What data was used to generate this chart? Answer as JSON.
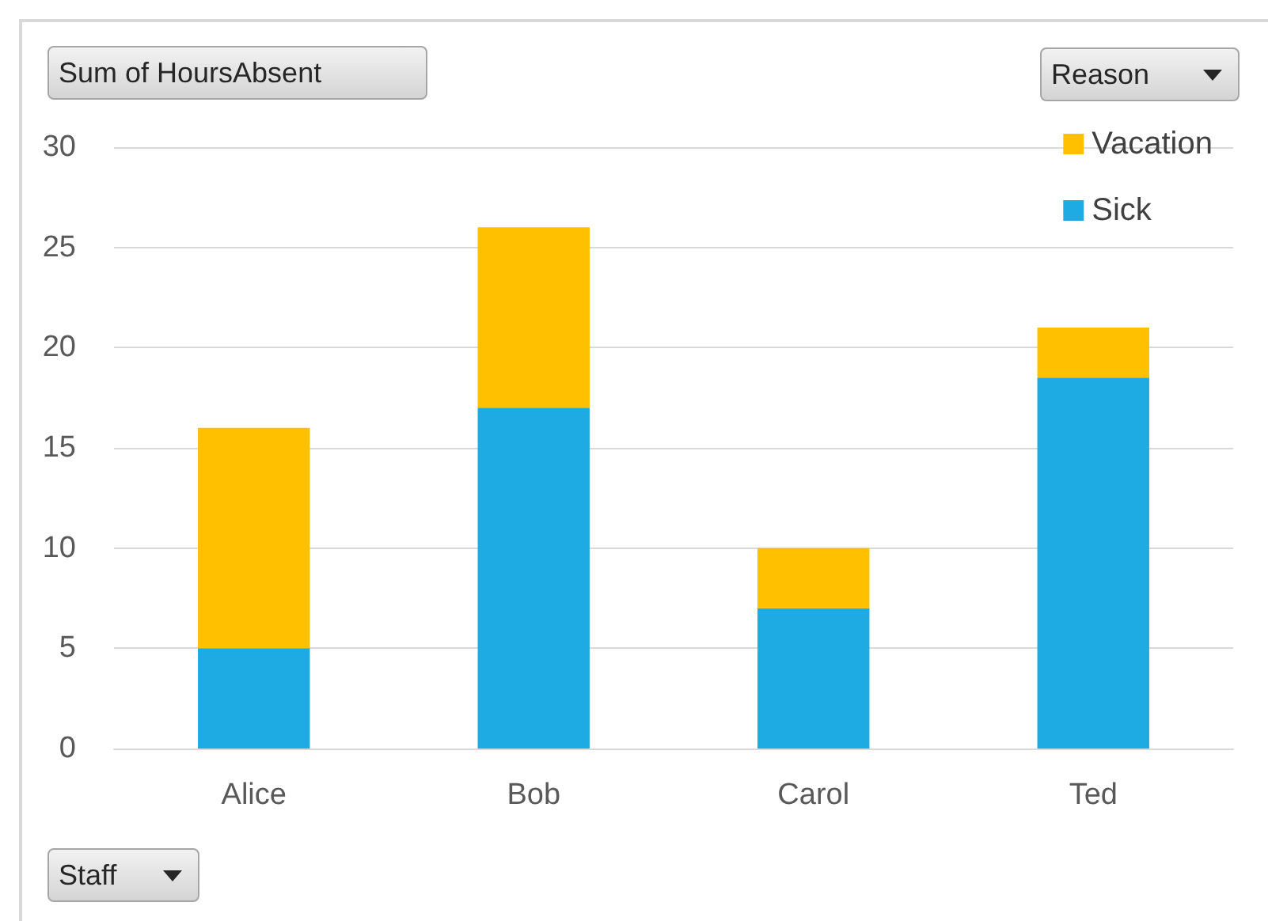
{
  "chart_data": {
    "type": "bar",
    "title": "Sum of HoursAbsent",
    "xlabel": "Staff",
    "legend_title": "Reason",
    "categories": [
      "Alice",
      "Bob",
      "Carol",
      "Ted"
    ],
    "stacked": true,
    "series": [
      {
        "name": "Sick",
        "color": "#1eabe3",
        "values": [
          5,
          17,
          7,
          18.5
        ]
      },
      {
        "name": "Vacation",
        "color": "#ffc000",
        "values": [
          11,
          9,
          3,
          2.5
        ]
      }
    ],
    "ylim": [
      0,
      30
    ],
    "yticks": [
      0,
      5,
      10,
      15,
      20,
      25,
      30
    ],
    "grid": "y",
    "legend": "top right"
  }
}
